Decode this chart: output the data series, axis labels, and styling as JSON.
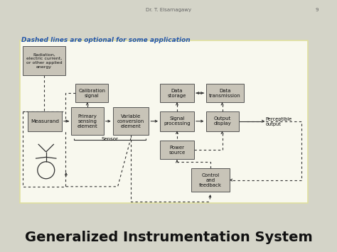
{
  "title": "Generalized Instrumentation System",
  "title_fontsize": 14,
  "title_color": "#111111",
  "bg_color": "#d4d4c8",
  "panel_color": "#f8f8ee",
  "panel_edge": "#e0e0a0",
  "box_fill": "#c8c4b8",
  "box_edge": "#555555",
  "footer_text": "Dr. T. Elsarnagawy",
  "footer_number": "9",
  "dashed_note": "Dashed lines are optional for some application",
  "dashed_note_color": "#2255aa",
  "arrow_color": "#333333",
  "line_color": "#333333"
}
